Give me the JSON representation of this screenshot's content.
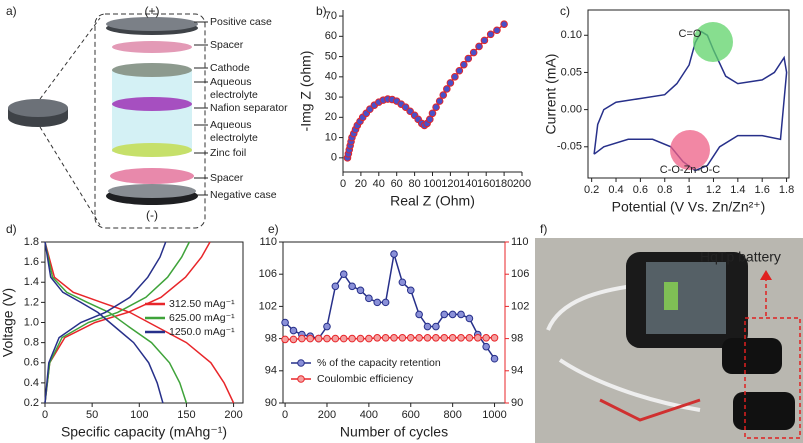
{
  "chart_data": [
    {
      "type": "diagram",
      "label": "a)",
      "top_sign": "(+)",
      "bottom_sign": "(-)",
      "layers": [
        [
          "Positive case"
        ],
        [
          "Spacer"
        ],
        [
          "Cathode"
        ],
        [
          "Aqueous",
          "electrolyte"
        ],
        [
          "Nafion separator"
        ],
        [
          "Aqueous",
          "electrolyte"
        ],
        [
          "Zinc foil"
        ],
        [
          "Spacer"
        ],
        [
          "Negative case"
        ]
      ]
    },
    {
      "type": "line",
      "label": "b)",
      "xlabel": "Real Z (Ohm)",
      "ylabel": "-Img Z (ohm)",
      "box": false,
      "x": [
        5,
        6,
        7,
        8,
        9,
        10,
        12,
        14,
        16,
        19,
        22,
        26,
        30,
        35,
        40,
        45,
        50,
        55,
        60,
        65,
        70,
        75,
        80,
        84,
        88,
        91,
        94,
        97,
        100,
        104,
        108,
        112,
        116,
        120,
        125,
        130,
        135,
        140,
        146,
        152,
        158,
        165,
        172,
        180
      ],
      "series": [
        {
          "color": "#e0262b",
          "marker": true,
          "marker_fill": "#4a50c8",
          "values": [
            0,
            2,
            4,
            6,
            8,
            10,
            12,
            14,
            16,
            18,
            20,
            22,
            24,
            26,
            27.5,
            28.5,
            29,
            28.8,
            28,
            26.5,
            25,
            23,
            21,
            19,
            17,
            16,
            17,
            19,
            22,
            25,
            28,
            31,
            34,
            37,
            40,
            43,
            46,
            49,
            52,
            55,
            58,
            61,
            63,
            66
          ]
        }
      ],
      "xlim": [
        0,
        200
      ],
      "xticks": [
        0,
        20,
        40,
        60,
        80,
        100,
        120,
        140,
        160,
        180,
        200
      ],
      "ylim": [
        -7,
        73
      ],
      "yticks": [
        0,
        10,
        20,
        30,
        40,
        50,
        60,
        70
      ]
    },
    {
      "type": "line",
      "label": "c)",
      "xlabel": "Potential (V Vs. Zn/Zn²⁺)",
      "ylabel": "Current (mA)",
      "box": true,
      "annotations": [
        "C=O",
        "C-O-Zn-O-C"
      ],
      "x": [
        0.22,
        0.25,
        0.3,
        0.4,
        0.6,
        0.8,
        0.9,
        1.0,
        1.05,
        1.1,
        1.15,
        1.2,
        1.3,
        1.4,
        1.6,
        1.7,
        1.78,
        1.8,
        1.75,
        1.6,
        1.4,
        1.25,
        1.15,
        1.05,
        0.95,
        0.85,
        0.7,
        0.5,
        0.3,
        0.22
      ],
      "series": [
        {
          "color": "#27308a",
          "marker": false,
          "values": [
            -0.06,
            -0.02,
            0.0,
            0.01,
            0.015,
            0.02,
            0.035,
            0.06,
            0.09,
            0.105,
            0.1,
            0.08,
            0.045,
            0.035,
            0.04,
            0.05,
            0.07,
            0.05,
            -0.04,
            -0.035,
            -0.035,
            -0.05,
            -0.075,
            -0.082,
            -0.07,
            -0.05,
            -0.04,
            -0.04,
            -0.05,
            -0.06
          ]
        }
      ],
      "xlim": [
        0.17,
        1.82
      ],
      "xticks": [
        0.2,
        0.4,
        0.6,
        0.8,
        1,
        1.2,
        1.4,
        1.6,
        1.8
      ],
      "ylim": [
        -0.092,
        0.134
      ],
      "yticks": [
        -0.05,
        {
          "value": 0,
          "label": "0.00"
        },
        0.05,
        {
          "value": 0.1,
          "label": "0.10"
        }
      ]
    },
    {
      "type": "line",
      "label": "d)",
      "xlabel": "Specific capacity (mAhg⁻¹)",
      "ylabel": "Voltage (V)",
      "box": true,
      "legend": "center right",
      "series": [
        {
          "name": "312.50 mAg⁻¹",
          "color": "#e8262a",
          "marker": false,
          "x": [
            0,
            10,
            30,
            60,
            90,
            120,
            150,
            176,
            190,
            200,
            null,
            0,
            5,
            21,
            53,
            88,
            123,
            149,
            166,
            175
          ],
          "values": [
            1.8,
            1.45,
            1.3,
            1.2,
            1.1,
            0.95,
            0.8,
            0.6,
            0.4,
            0.2,
            null,
            0.2,
            0.6,
            0.85,
            1.0,
            1.1,
            1.25,
            1.45,
            1.65,
            1.8
          ]
        },
        {
          "name": "625.00 mAg⁻¹",
          "color": "#3fa33a",
          "marker": false,
          "x": [
            0,
            8,
            23,
            45,
            68,
            90,
            113,
            132,
            143,
            150,
            null,
            0,
            5,
            18,
            46,
            77,
            107,
            130,
            145,
            153
          ],
          "values": [
            1.8,
            1.45,
            1.3,
            1.2,
            1.1,
            0.95,
            0.8,
            0.6,
            0.4,
            0.2,
            null,
            0.2,
            0.6,
            0.85,
            1.0,
            1.1,
            1.25,
            1.45,
            1.65,
            1.8
          ]
        },
        {
          "name": "1250.0 mAg⁻¹",
          "color": "#27308a",
          "marker": false,
          "x": [
            0,
            6,
            19,
            38,
            56,
            75,
            94,
            110,
            119,
            125,
            null,
            0,
            4,
            15,
            38,
            64,
            90,
            109,
            122,
            128
          ],
          "values": [
            1.8,
            1.45,
            1.3,
            1.2,
            1.1,
            0.95,
            0.8,
            0.6,
            0.4,
            0.2,
            null,
            0.2,
            0.6,
            0.85,
            1.0,
            1.1,
            1.25,
            1.45,
            1.65,
            1.8
          ]
        }
      ],
      "xlim": [
        0,
        210
      ],
      "xticks": [
        0,
        50,
        100,
        150,
        200
      ],
      "ylim": [
        0.2,
        1.8
      ],
      "yticks": [
        0.2,
        0.4,
        0.6,
        0.8,
        {
          "value": 1,
          "label": "1.0"
        },
        1.2,
        1.4,
        1.6,
        1.8
      ]
    },
    {
      "type": "line",
      "label": "e)",
      "xlabel": "Number of cycles",
      "box": true,
      "legend": "lower left",
      "x": [
        0,
        40,
        80,
        120,
        160,
        200,
        240,
        280,
        320,
        360,
        400,
        440,
        480,
        520,
        560,
        600,
        640,
        680,
        720,
        760,
        800,
        840,
        880,
        920,
        960,
        1000
      ],
      "series": [
        {
          "name": "% of the capacity retention",
          "color": "#27308a",
          "marker": true,
          "marker_fill": "#8a90d8",
          "values": [
            100,
            99,
            98.5,
            98.3,
            98,
            99.5,
            104.5,
            106,
            104.5,
            104,
            103,
            102.5,
            102.5,
            108.5,
            105,
            104,
            101,
            99.5,
            99.5,
            101,
            101,
            101,
            100.5,
            98.5,
            97,
            95.5
          ]
        },
        {
          "name": "Coulombic efficiency",
          "color": "#e8262a",
          "marker": true,
          "marker_fill": "#f4a0a0",
          "axis": "y2",
          "values": [
            97.9,
            97.9,
            98,
            98,
            98,
            98,
            98,
            98,
            98,
            98,
            98,
            98.1,
            98.1,
            98.1,
            98.1,
            98.1,
            98.1,
            98.1,
            98.1,
            98.1,
            98.1,
            98.1,
            98.1,
            98.1,
            98.1,
            98.1
          ]
        }
      ],
      "xlim": [
        -10,
        1050
      ],
      "xticks": [
        0,
        200,
        400,
        600,
        800,
        1000
      ],
      "ylim": [
        90,
        110
      ],
      "yticks": [
        90,
        94,
        98,
        102,
        106,
        110
      ],
      "y2lim": [
        90,
        110
      ],
      "y2ticks": [
        90,
        94,
        98,
        102,
        106,
        110
      ]
    },
    {
      "type": "image",
      "label": "f)",
      "annotation": "HqTp battery"
    }
  ]
}
